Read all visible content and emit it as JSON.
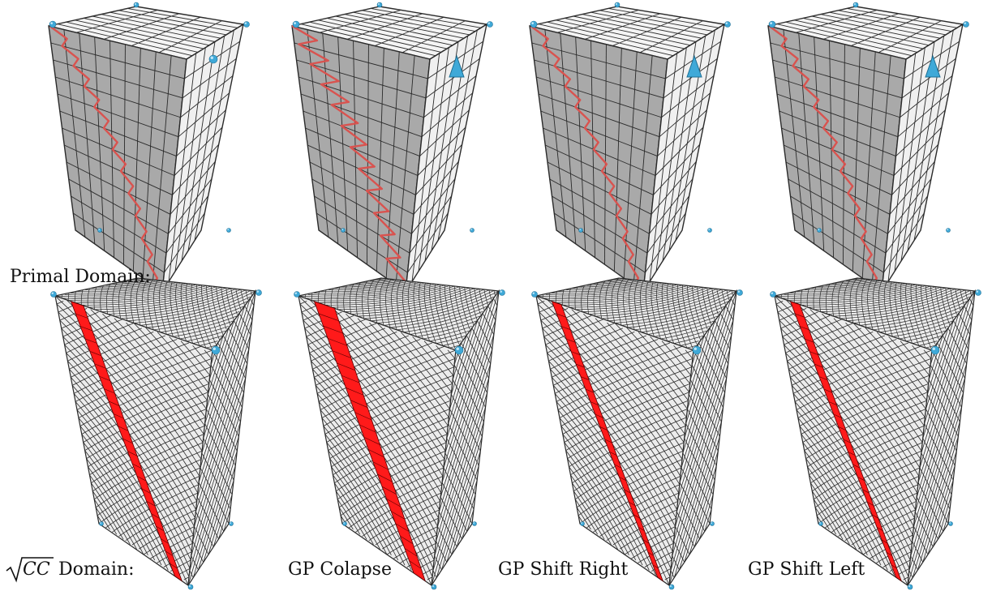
{
  "labels": {
    "primal_domain": "Primal Domain:",
    "sqrt_cc_domain_radicand": "CC",
    "sqrt_cc_domain_suffix": "Domain:",
    "column_2": "GP Colapse",
    "column_3": "GP Shift Right",
    "column_4": "GP Shift Left"
  },
  "colors": {
    "primal_front_face": "#a9a9a9",
    "primal_side_face": "#f0f0f0",
    "primal_top_face": "#f4f4f4",
    "grid_line": "#2a2a2a",
    "path_red": "#d9534f",
    "strip_red": "#ff1a1a",
    "vertex_blue": "#3fa9d8",
    "sqrt_face": "#ececec"
  },
  "icons": {
    "singular_vertex": "blue-sphere-icon",
    "singular_corner": "blue-triangle-icon"
  }
}
